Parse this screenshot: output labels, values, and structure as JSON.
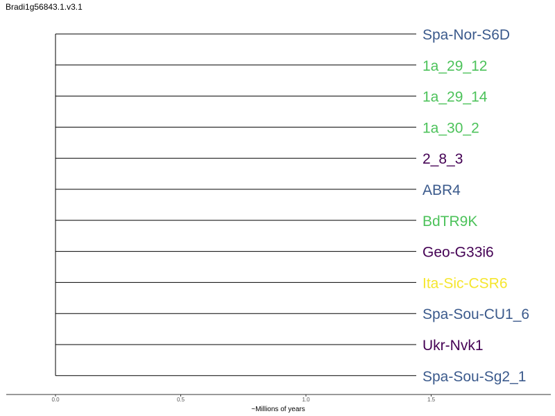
{
  "title": "Bradi1g56843.1.v3.1",
  "axis": {
    "xlabel": "~Millions of years",
    "ticks": [
      "0.0",
      "0.5",
      "1.0",
      "1.5"
    ],
    "tick_values": [
      0.0,
      0.5,
      1.0,
      1.5
    ],
    "xlim": [
      0.0,
      2.0
    ]
  },
  "colors": {
    "blue": "#3b5a8c",
    "green": "#4cc25a",
    "purple": "#440154",
    "yellow": "#f5e62e",
    "line": "#000000"
  },
  "tree": {
    "root_x": 0.0,
    "leaf_x": 1.44,
    "leaves": [
      {
        "name": "Spa-Nor-S6D",
        "color": "#3b5a8c"
      },
      {
        "name": "1a_29_12",
        "color": "#4cc25a"
      },
      {
        "name": "1a_29_14",
        "color": "#4cc25a"
      },
      {
        "name": "1a_30_2",
        "color": "#4cc25a"
      },
      {
        "name": "2_8_3",
        "color": "#440154"
      },
      {
        "name": "ABR4",
        "color": "#3b5a8c"
      },
      {
        "name": "BdTR9K",
        "color": "#4cc25a"
      },
      {
        "name": "Geo-G33i6",
        "color": "#440154"
      },
      {
        "name": "Ita-Sic-CSR6",
        "color": "#f5e62e"
      },
      {
        "name": "Spa-Sou-CU1_6",
        "color": "#3b5a8c"
      },
      {
        "name": "Ukr-Nvk1",
        "color": "#440154"
      },
      {
        "name": "Spa-Sou-Sg2_1",
        "color": "#3b5a8c"
      }
    ]
  }
}
